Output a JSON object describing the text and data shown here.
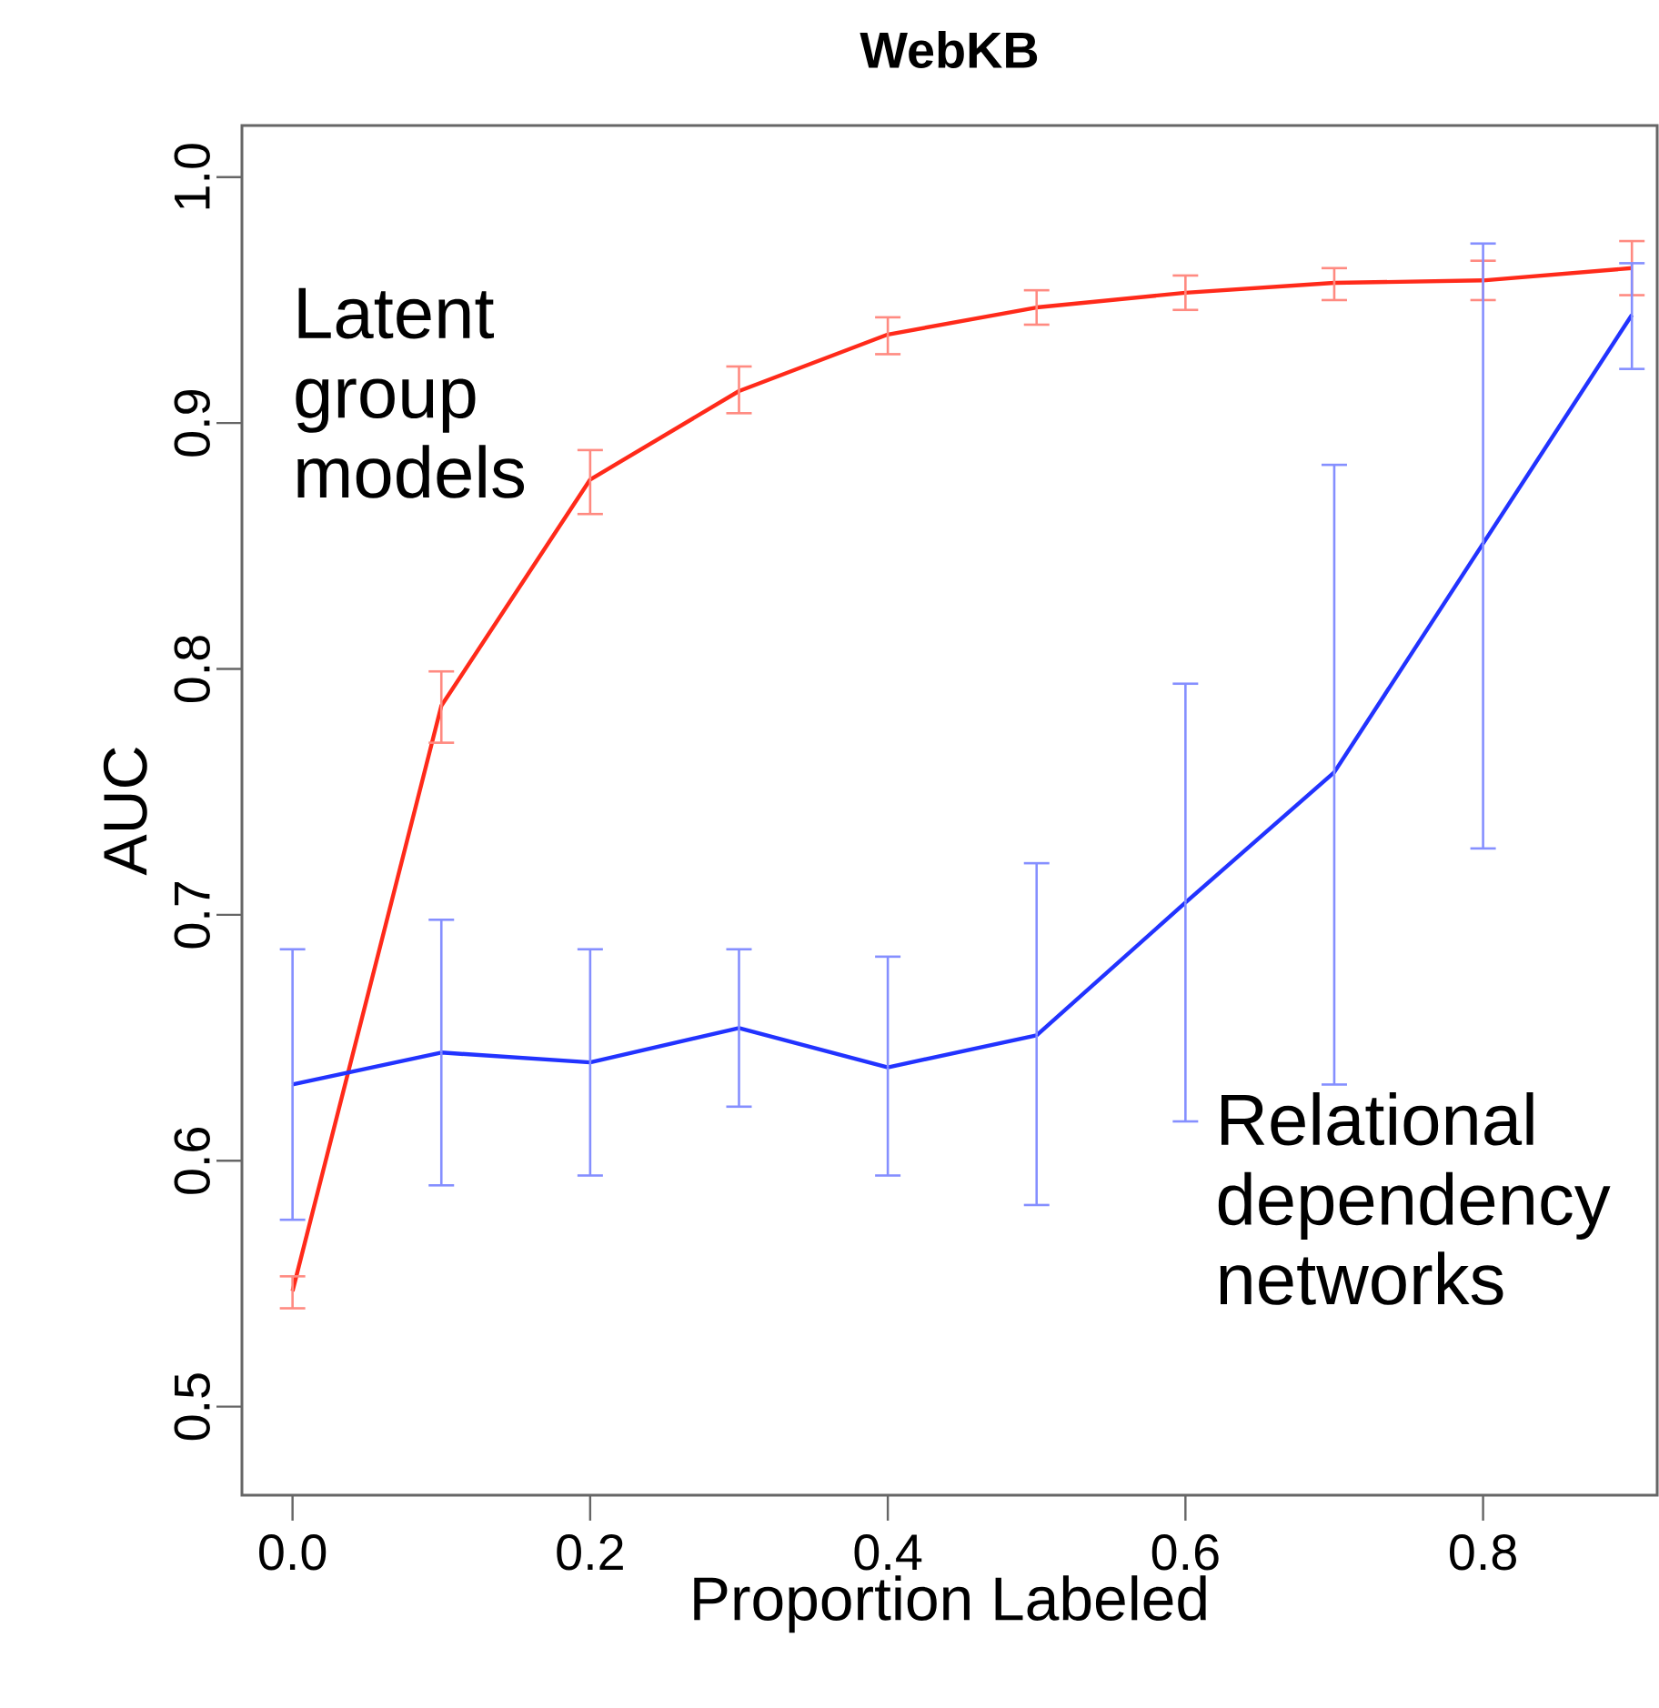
{
  "chart_data": {
    "type": "line",
    "title": "WebKB",
    "xlabel": "Proportion Labeled",
    "ylabel": "AUC",
    "x": [
      0.0,
      0.1,
      0.2,
      0.3,
      0.4,
      0.5,
      0.6,
      0.7,
      0.8,
      0.9
    ],
    "series": [
      {
        "name": "Latent group models",
        "color": "#ff2a1a",
        "values": [
          0.547,
          0.785,
          0.877,
          0.913,
          0.936,
          0.947,
          0.953,
          0.957,
          0.958,
          0.963
        ],
        "errors": [
          [
            0.54,
            0.553
          ],
          [
            0.77,
            0.799
          ],
          [
            0.863,
            0.889
          ],
          [
            0.904,
            0.923
          ],
          [
            0.928,
            0.943
          ],
          [
            0.94,
            0.954
          ],
          [
            0.946,
            0.96
          ],
          [
            0.95,
            0.963
          ],
          [
            0.95,
            0.966
          ],
          [
            0.952,
            0.974
          ]
        ]
      },
      {
        "name": "Relational dependency networks",
        "color": "#2233ff",
        "values": [
          0.631,
          0.644,
          0.64,
          0.654,
          0.638,
          0.651,
          0.705,
          0.758,
          0.851,
          0.944
        ],
        "errors": [
          [
            0.576,
            0.686
          ],
          [
            0.59,
            0.698
          ],
          [
            0.594,
            0.686
          ],
          [
            0.622,
            0.686
          ],
          [
            0.594,
            0.683
          ],
          [
            0.582,
            0.721
          ],
          [
            0.616,
            0.794
          ],
          [
            0.631,
            0.883
          ],
          [
            0.727,
            0.973
          ],
          [
            0.922,
            0.965
          ]
        ]
      }
    ],
    "xlim": [
      -0.034,
      0.917
    ],
    "ylim": [
      0.464,
      1.021
    ],
    "xticks": [
      {
        "value": 0,
        "label": "0.0"
      },
      0.2,
      0.4,
      0.6,
      0.8
    ],
    "yticks": [
      0.5,
      0.6,
      0.7,
      0.8,
      0.9,
      {
        "value": 1,
        "label": "1.0"
      }
    ],
    "line_style": "solid",
    "legend": false,
    "grid": false
  }
}
